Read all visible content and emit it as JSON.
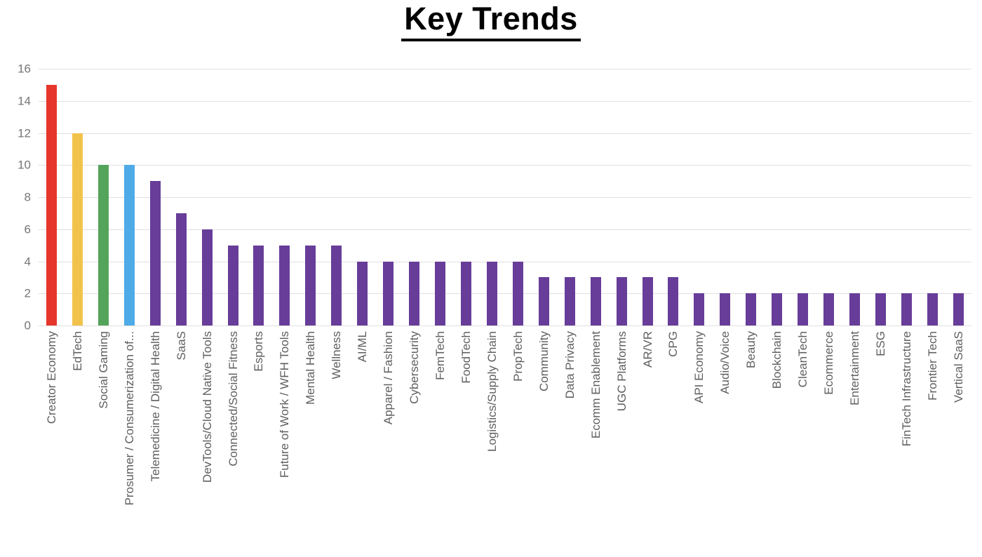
{
  "page_title": "Key Trends",
  "colors": {
    "background": "#ffffff",
    "title_text": "#000000",
    "gridline": "#e0e0e0",
    "y_tick_text": "#757575",
    "x_label_text": "#5f5f5f",
    "highlight_red": "#e6352b",
    "highlight_yellow": "#f2c34c",
    "highlight_green": "#55a45c",
    "highlight_blue": "#4fabe8",
    "default_purple": "#673d99"
  },
  "chart_data": {
    "type": "bar",
    "title": "Key Trends",
    "xlabel": "",
    "ylabel": "",
    "ylim": [
      0,
      16
    ],
    "yticks": [
      0,
      2,
      4,
      6,
      8,
      10,
      12,
      14,
      16
    ],
    "grid": "horizontal",
    "legend": "none",
    "categories": [
      "Creator Economy",
      "EdTech",
      "Social Gaming",
      "Prosumer / Consumerization of...",
      "Telemedicine / Digital Health",
      "SaaS",
      "DevTools/Cloud Native Tools",
      "Connected/Social Fitness",
      "Esports",
      "Future of Work / WFH Tools",
      "Mental Health",
      "Wellness",
      "AI/ML",
      "Apparel / Fashion",
      "Cybersecurity",
      "FemTech",
      "FoodTech",
      "Logistics/Supply Chain",
      "PropTech",
      "Community",
      "Data Privacy",
      "Ecomm Enablement",
      "UGC Platforms",
      "AR/VR",
      "CPG",
      "API Economy",
      "Audio/Voice",
      "Beauty",
      "Blockchain",
      "CleanTech",
      "Ecommerce",
      "Entertainment",
      "ESG",
      "FinTech Infrastructure",
      "Frontier Tech",
      "Vertical SaaS"
    ],
    "values": [
      15,
      12,
      10,
      10,
      9,
      7,
      6,
      5,
      5,
      5,
      5,
      5,
      4,
      4,
      4,
      4,
      4,
      4,
      4,
      3,
      3,
      3,
      3,
      3,
      3,
      2,
      2,
      2,
      2,
      2,
      2,
      2,
      2,
      2,
      2,
      2
    ],
    "bar_colors": [
      "#e6352b",
      "#f2c34c",
      "#55a45c",
      "#4fabe8",
      "#673d99",
      "#673d99",
      "#673d99",
      "#673d99",
      "#673d99",
      "#673d99",
      "#673d99",
      "#673d99",
      "#673d99",
      "#673d99",
      "#673d99",
      "#673d99",
      "#673d99",
      "#673d99",
      "#673d99",
      "#673d99",
      "#673d99",
      "#673d99",
      "#673d99",
      "#673d99",
      "#673d99",
      "#673d99",
      "#673d99",
      "#673d99",
      "#673d99",
      "#673d99",
      "#673d99",
      "#673d99",
      "#673d99",
      "#673d99",
      "#673d99",
      "#673d99"
    ]
  }
}
